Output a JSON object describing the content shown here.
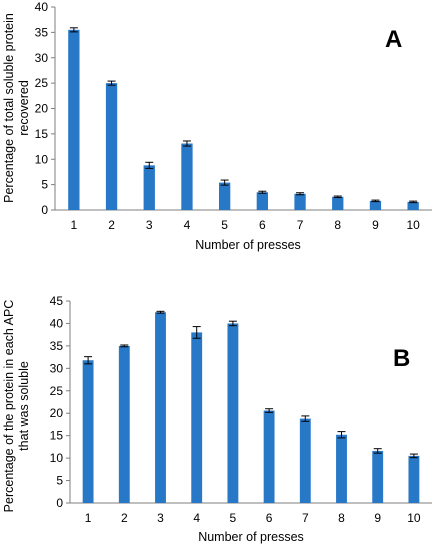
{
  "chart_data": [
    {
      "type": "bar",
      "panel_label": "A",
      "categories": [
        "1",
        "2",
        "3",
        "4",
        "5",
        "6",
        "7",
        "8",
        "9",
        "10"
      ],
      "values": [
        35.5,
        25.0,
        8.8,
        13.1,
        5.4,
        3.5,
        3.2,
        2.6,
        1.8,
        1.6
      ],
      "errors": [
        0.4,
        0.4,
        0.6,
        0.5,
        0.5,
        0.2,
        0.2,
        0.15,
        0.15,
        0.15
      ],
      "ylim": [
        0,
        40
      ],
      "yticks": [
        0,
        5,
        10,
        15,
        20,
        25,
        30,
        35,
        40
      ],
      "ylabel_lines": [
        "Percentage of total soluble protein",
        "recovered"
      ],
      "xlabel": "Number of presses",
      "bar_color": "#2878c8",
      "error_bars": true,
      "grid": false
    },
    {
      "type": "bar",
      "panel_label": "B",
      "categories": [
        "1",
        "2",
        "3",
        "4",
        "5",
        "6",
        "7",
        "8",
        "9",
        "10"
      ],
      "values": [
        31.8,
        35.0,
        42.5,
        38.0,
        40.0,
        20.6,
        18.8,
        15.2,
        11.6,
        10.5
      ],
      "errors": [
        0.8,
        0.2,
        0.2,
        1.3,
        0.5,
        0.4,
        0.6,
        0.7,
        0.5,
        0.4
      ],
      "ylim": [
        0,
        45
      ],
      "yticks": [
        0,
        5,
        10,
        15,
        20,
        25,
        30,
        35,
        40,
        45
      ],
      "ylabel_lines": [
        "Percentage of the protein in each APC",
        "that was soluble"
      ],
      "xlabel": "Number of presses",
      "bar_color": "#2878c8",
      "error_bars": true,
      "grid": false
    }
  ]
}
